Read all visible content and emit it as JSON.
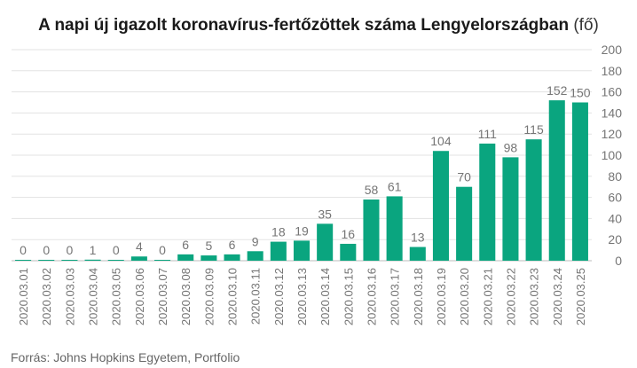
{
  "chart_data": {
    "type": "bar",
    "title": "A napi új igazolt koronavírus-fertőzöttek száma Lengyelországban",
    "title_unit": "(fő)",
    "categories": [
      "2020.03.01",
      "2020.03.02",
      "2020.03.03",
      "2020.03.04",
      "2020.03.05",
      "2020.03.06",
      "2020.03.07",
      "2020.03.08",
      "2020.03.09",
      "2020.03.10",
      "2020.03.11",
      "2020.03.12",
      "2020.03.13",
      "2020.03.14",
      "2020.03.15",
      "2020.03.16",
      "2020.03.17",
      "2020.03.18",
      "2020.03.19",
      "2020.03.20",
      "2020.03.21",
      "2020.03.22",
      "2020.03.23",
      "2020.03.24",
      "2020.03.25"
    ],
    "values": [
      0,
      0,
      0,
      1,
      0,
      4,
      0,
      6,
      5,
      6,
      9,
      18,
      19,
      35,
      16,
      58,
      61,
      13,
      104,
      70,
      111,
      98,
      115,
      152,
      150
    ],
    "data_labels": [
      "0",
      "0",
      "0",
      "1",
      "0",
      "4",
      "0",
      "6",
      "5",
      "6",
      "9",
      "18",
      "19",
      "35",
      "16",
      "58",
      "61",
      "13",
      "104",
      "70",
      "111",
      "98",
      "115",
      "152",
      "150"
    ],
    "ylim": [
      0,
      200
    ],
    "y_ticks": [
      "0",
      "20",
      "40",
      "60",
      "80",
      "100",
      "120",
      "140",
      "160",
      "180",
      "200"
    ],
    "y_axis_position": "right",
    "grid": true,
    "bar_color": "#0aa57f",
    "source": "Forrás: Johns Hopkins Egyetem, Portfolio"
  }
}
